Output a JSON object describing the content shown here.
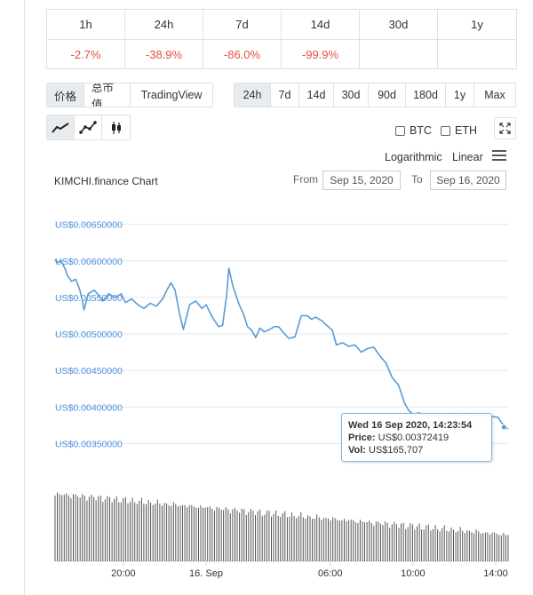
{
  "performance": {
    "headers": [
      "1h",
      "24h",
      "7d",
      "14d",
      "30d",
      "1y"
    ],
    "values": [
      "-2.7%",
      "-38.9%",
      "-86.0%",
      "-99.9%",
      "",
      ""
    ]
  },
  "view_tabs": [
    "价格",
    "总市值",
    "TradingView"
  ],
  "range_buttons": [
    "24h",
    "7d",
    "14d",
    "30d",
    "90d",
    "180d",
    "1y",
    "Max"
  ],
  "compare": {
    "btc": "BTC",
    "eth": "ETH"
  },
  "scale": {
    "log": "Logarithmic",
    "linear": "Linear"
  },
  "chart_title": "KIMCHI.finance Chart",
  "date_range": {
    "from_label": "From",
    "from": "Sep 15, 2020",
    "to_label": "To",
    "to": "Sep 16, 2020"
  },
  "tooltip": {
    "date": "Wed 16 Sep 2020, 14:23:54",
    "price_label": "Price:",
    "price": "US$0.00372419",
    "vol_label": "Vol:",
    "vol": "US$165,707"
  },
  "colors": {
    "line": "#5b9bd5",
    "negative": "#e15241",
    "volume": "#555555",
    "axis_text": "#4a90e2"
  },
  "chart_data": {
    "type": "line",
    "title": "KIMCHI.finance Chart",
    "y_ticks": [
      0.0065,
      0.006,
      0.0055,
      0.005,
      0.0045,
      0.004,
      0.0035
    ],
    "y_tick_labels": [
      "US$0.00650000",
      "US$0.00600000",
      "US$0.00550000",
      "US$0.00500000",
      "US$0.00450000",
      "US$0.00400000",
      "US$0.00350000"
    ],
    "ylim": [
      0.00325,
      0.0068
    ],
    "x_range_hours": [
      16.7,
      38.6
    ],
    "x_ticks": [
      20,
      24,
      30,
      34,
      38
    ],
    "x_tick_labels": [
      "20:00",
      "16. Sep",
      "06:00",
      "10:00",
      "14:00"
    ],
    "series": [
      {
        "values": [
          [
            16.7,
            0.00602
          ],
          [
            16.8,
            0.00598
          ],
          [
            17.0,
            0.006
          ],
          [
            17.2,
            0.00588
          ],
          [
            17.3,
            0.0058
          ],
          [
            17.5,
            0.00572
          ],
          [
            17.7,
            0.00575
          ],
          [
            17.9,
            0.0056
          ],
          [
            18.0,
            0.00548
          ],
          [
            18.1,
            0.00533
          ],
          [
            18.3,
            0.00555
          ],
          [
            18.6,
            0.0056
          ],
          [
            18.8,
            0.00553
          ],
          [
            19.0,
            0.00545
          ],
          [
            19.3,
            0.00555
          ],
          [
            19.6,
            0.0055
          ],
          [
            19.9,
            0.00555
          ],
          [
            20.1,
            0.00543
          ],
          [
            20.4,
            0.00548
          ],
          [
            20.7,
            0.0054
          ],
          [
            21.0,
            0.00535
          ],
          [
            21.3,
            0.00542
          ],
          [
            21.6,
            0.00538
          ],
          [
            21.9,
            0.00548
          ],
          [
            22.1,
            0.0056
          ],
          [
            22.3,
            0.0057
          ],
          [
            22.5,
            0.0056
          ],
          [
            22.7,
            0.0053
          ],
          [
            22.9,
            0.00506
          ],
          [
            23.2,
            0.0054
          ],
          [
            23.5,
            0.00545
          ],
          [
            23.8,
            0.00535
          ],
          [
            24.0,
            0.0054
          ],
          [
            24.3,
            0.00523
          ],
          [
            24.6,
            0.0051
          ],
          [
            24.8,
            0.00512
          ],
          [
            25.0,
            0.00555
          ],
          [
            25.1,
            0.0059
          ],
          [
            25.3,
            0.00565
          ],
          [
            25.6,
            0.0054
          ],
          [
            25.8,
            0.00528
          ],
          [
            26.0,
            0.0051
          ],
          [
            26.2,
            0.00505
          ],
          [
            26.4,
            0.00495
          ],
          [
            26.6,
            0.00508
          ],
          [
            26.8,
            0.00503
          ],
          [
            27.0,
            0.00505
          ],
          [
            27.3,
            0.0051
          ],
          [
            27.5,
            0.0051
          ],
          [
            27.8,
            0.005
          ],
          [
            28.0,
            0.00494
          ],
          [
            28.3,
            0.00496
          ],
          [
            28.6,
            0.00525
          ],
          [
            28.9,
            0.00525
          ],
          [
            29.1,
            0.0052
          ],
          [
            29.3,
            0.00523
          ],
          [
            29.6,
            0.00518
          ],
          [
            29.9,
            0.0051
          ],
          [
            30.1,
            0.00505
          ],
          [
            30.3,
            0.00485
          ],
          [
            30.6,
            0.00488
          ],
          [
            30.9,
            0.00483
          ],
          [
            31.2,
            0.00485
          ],
          [
            31.5,
            0.00475
          ],
          [
            31.8,
            0.0048
          ],
          [
            32.1,
            0.00482
          ],
          [
            32.4,
            0.0047
          ],
          [
            32.7,
            0.0046
          ],
          [
            33.0,
            0.0044
          ],
          [
            33.3,
            0.0043
          ],
          [
            33.6,
            0.00405
          ],
          [
            33.8,
            0.00395
          ],
          [
            34.0,
            0.0039
          ],
          [
            34.3,
            0.00392
          ],
          [
            34.6,
            0.00388
          ],
          [
            35.0,
            0.0039
          ],
          [
            35.4,
            0.00387
          ],
          [
            35.8,
            0.0039
          ],
          [
            36.2,
            0.00388
          ],
          [
            36.6,
            0.0039
          ],
          [
            37.0,
            0.00388
          ],
          [
            37.4,
            0.00389
          ],
          [
            37.8,
            0.00387
          ],
          [
            38.1,
            0.00386
          ],
          [
            38.3,
            0.00378
          ],
          [
            38.5,
            0.00372
          ],
          [
            38.6,
            0.0037
          ]
        ]
      }
    ],
    "tooltip_point": [
      38.4,
      0.00372419
    ]
  }
}
